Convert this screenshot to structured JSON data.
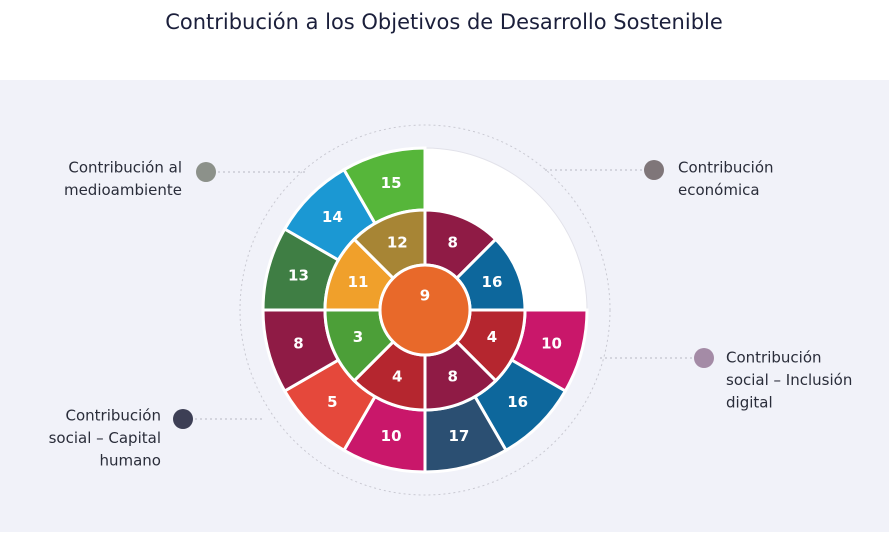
{
  "title": "Contribución a los Objetivos de Desarrollo Sostenible",
  "groups": [
    {
      "lines": [
        "Contribución al",
        "medioambiente"
      ],
      "color": "#8c918a"
    },
    {
      "lines": [
        "Contribución",
        "económica"
      ],
      "color": "#7f7679"
    },
    {
      "lines": [
        "Contribución",
        "social – Inclusión",
        "digital"
      ],
      "color": "#a48ba6"
    },
    {
      "lines": [
        "Contribución",
        "social – Capital",
        "humano"
      ],
      "color": "#3d3f55"
    }
  ],
  "outer_ring": [
    {
      "number": "10",
      "color": "#c9176a"
    },
    {
      "number": "16",
      "color": "#0d679c"
    },
    {
      "number": "17",
      "color": "#2b4f72"
    },
    {
      "number": "10",
      "color": "#c9176a"
    },
    {
      "number": "5",
      "color": "#e5483b"
    },
    {
      "number": "8",
      "color": "#8f1b45"
    },
    {
      "number": "13",
      "color": "#3f7e44"
    },
    {
      "number": "14",
      "color": "#1b98d3"
    },
    {
      "number": "15",
      "color": "#56b63a"
    }
  ],
  "inner_ring": [
    {
      "number": "8",
      "color": "#8f1b45"
    },
    {
      "number": "16",
      "color": "#0d679c"
    },
    {
      "number": "4",
      "color": "#b5262f"
    },
    {
      "number": "8",
      "color": "#8f1b45"
    },
    {
      "number": "4",
      "color": "#b5262f"
    },
    {
      "number": "3",
      "color": "#4c9f38"
    },
    {
      "number": "11",
      "color": "#f0a02b"
    },
    {
      "number": "12",
      "color": "#a78535"
    }
  ],
  "center": {
    "number": "9",
    "color": "#e8692a"
  }
}
